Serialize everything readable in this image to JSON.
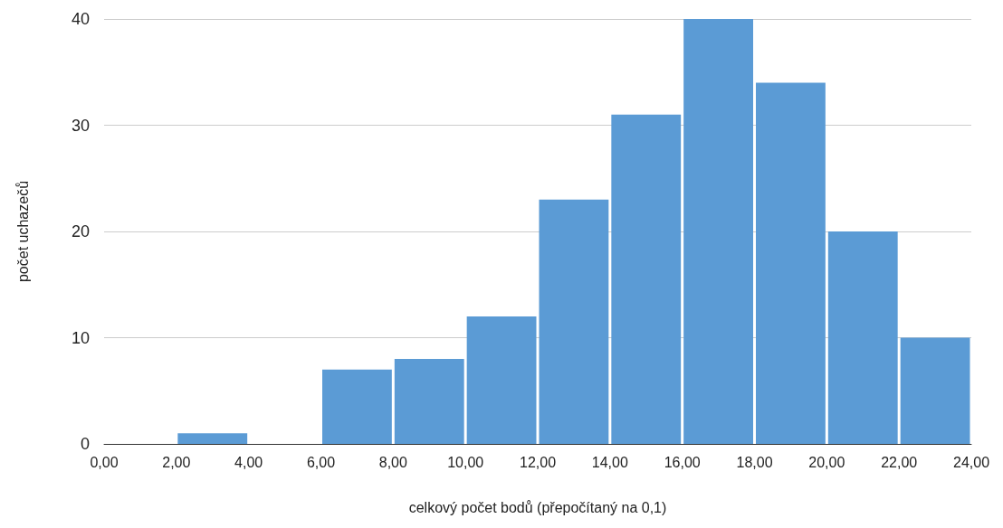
{
  "chart_data": {
    "type": "histogram",
    "xlabel": "celkový počet bodů (přepočítaný na 0,1)",
    "ylabel": "počet uchazečů",
    "bins": [
      0,
      2,
      4,
      6,
      8,
      10,
      12,
      14,
      16,
      18,
      20,
      22,
      24
    ],
    "values": [
      0,
      1,
      0,
      7,
      8,
      12,
      23,
      31,
      40,
      34,
      20,
      10
    ],
    "color": "#5b9bd5",
    "xlim": [
      0,
      24
    ],
    "xticks": [
      {
        "value": 0,
        "label": "0,00"
      },
      {
        "value": 2,
        "label": "2,00"
      },
      {
        "value": 4,
        "label": "4,00"
      },
      {
        "value": 6,
        "label": "6,00"
      },
      {
        "value": 8,
        "label": "8,00"
      },
      {
        "value": 10,
        "label": "10,00"
      },
      {
        "value": 12,
        "label": "12,00"
      },
      {
        "value": 14,
        "label": "14,00"
      },
      {
        "value": 16,
        "label": "16,00"
      },
      {
        "value": 18,
        "label": "18,00"
      },
      {
        "value": 20,
        "label": "20,00"
      },
      {
        "value": 22,
        "label": "22,00"
      },
      {
        "value": 24,
        "label": "24,00"
      }
    ],
    "ylim": [
      0,
      40
    ],
    "yticks": [
      0,
      10,
      20,
      30,
      40
    ],
    "grid": "y"
  }
}
